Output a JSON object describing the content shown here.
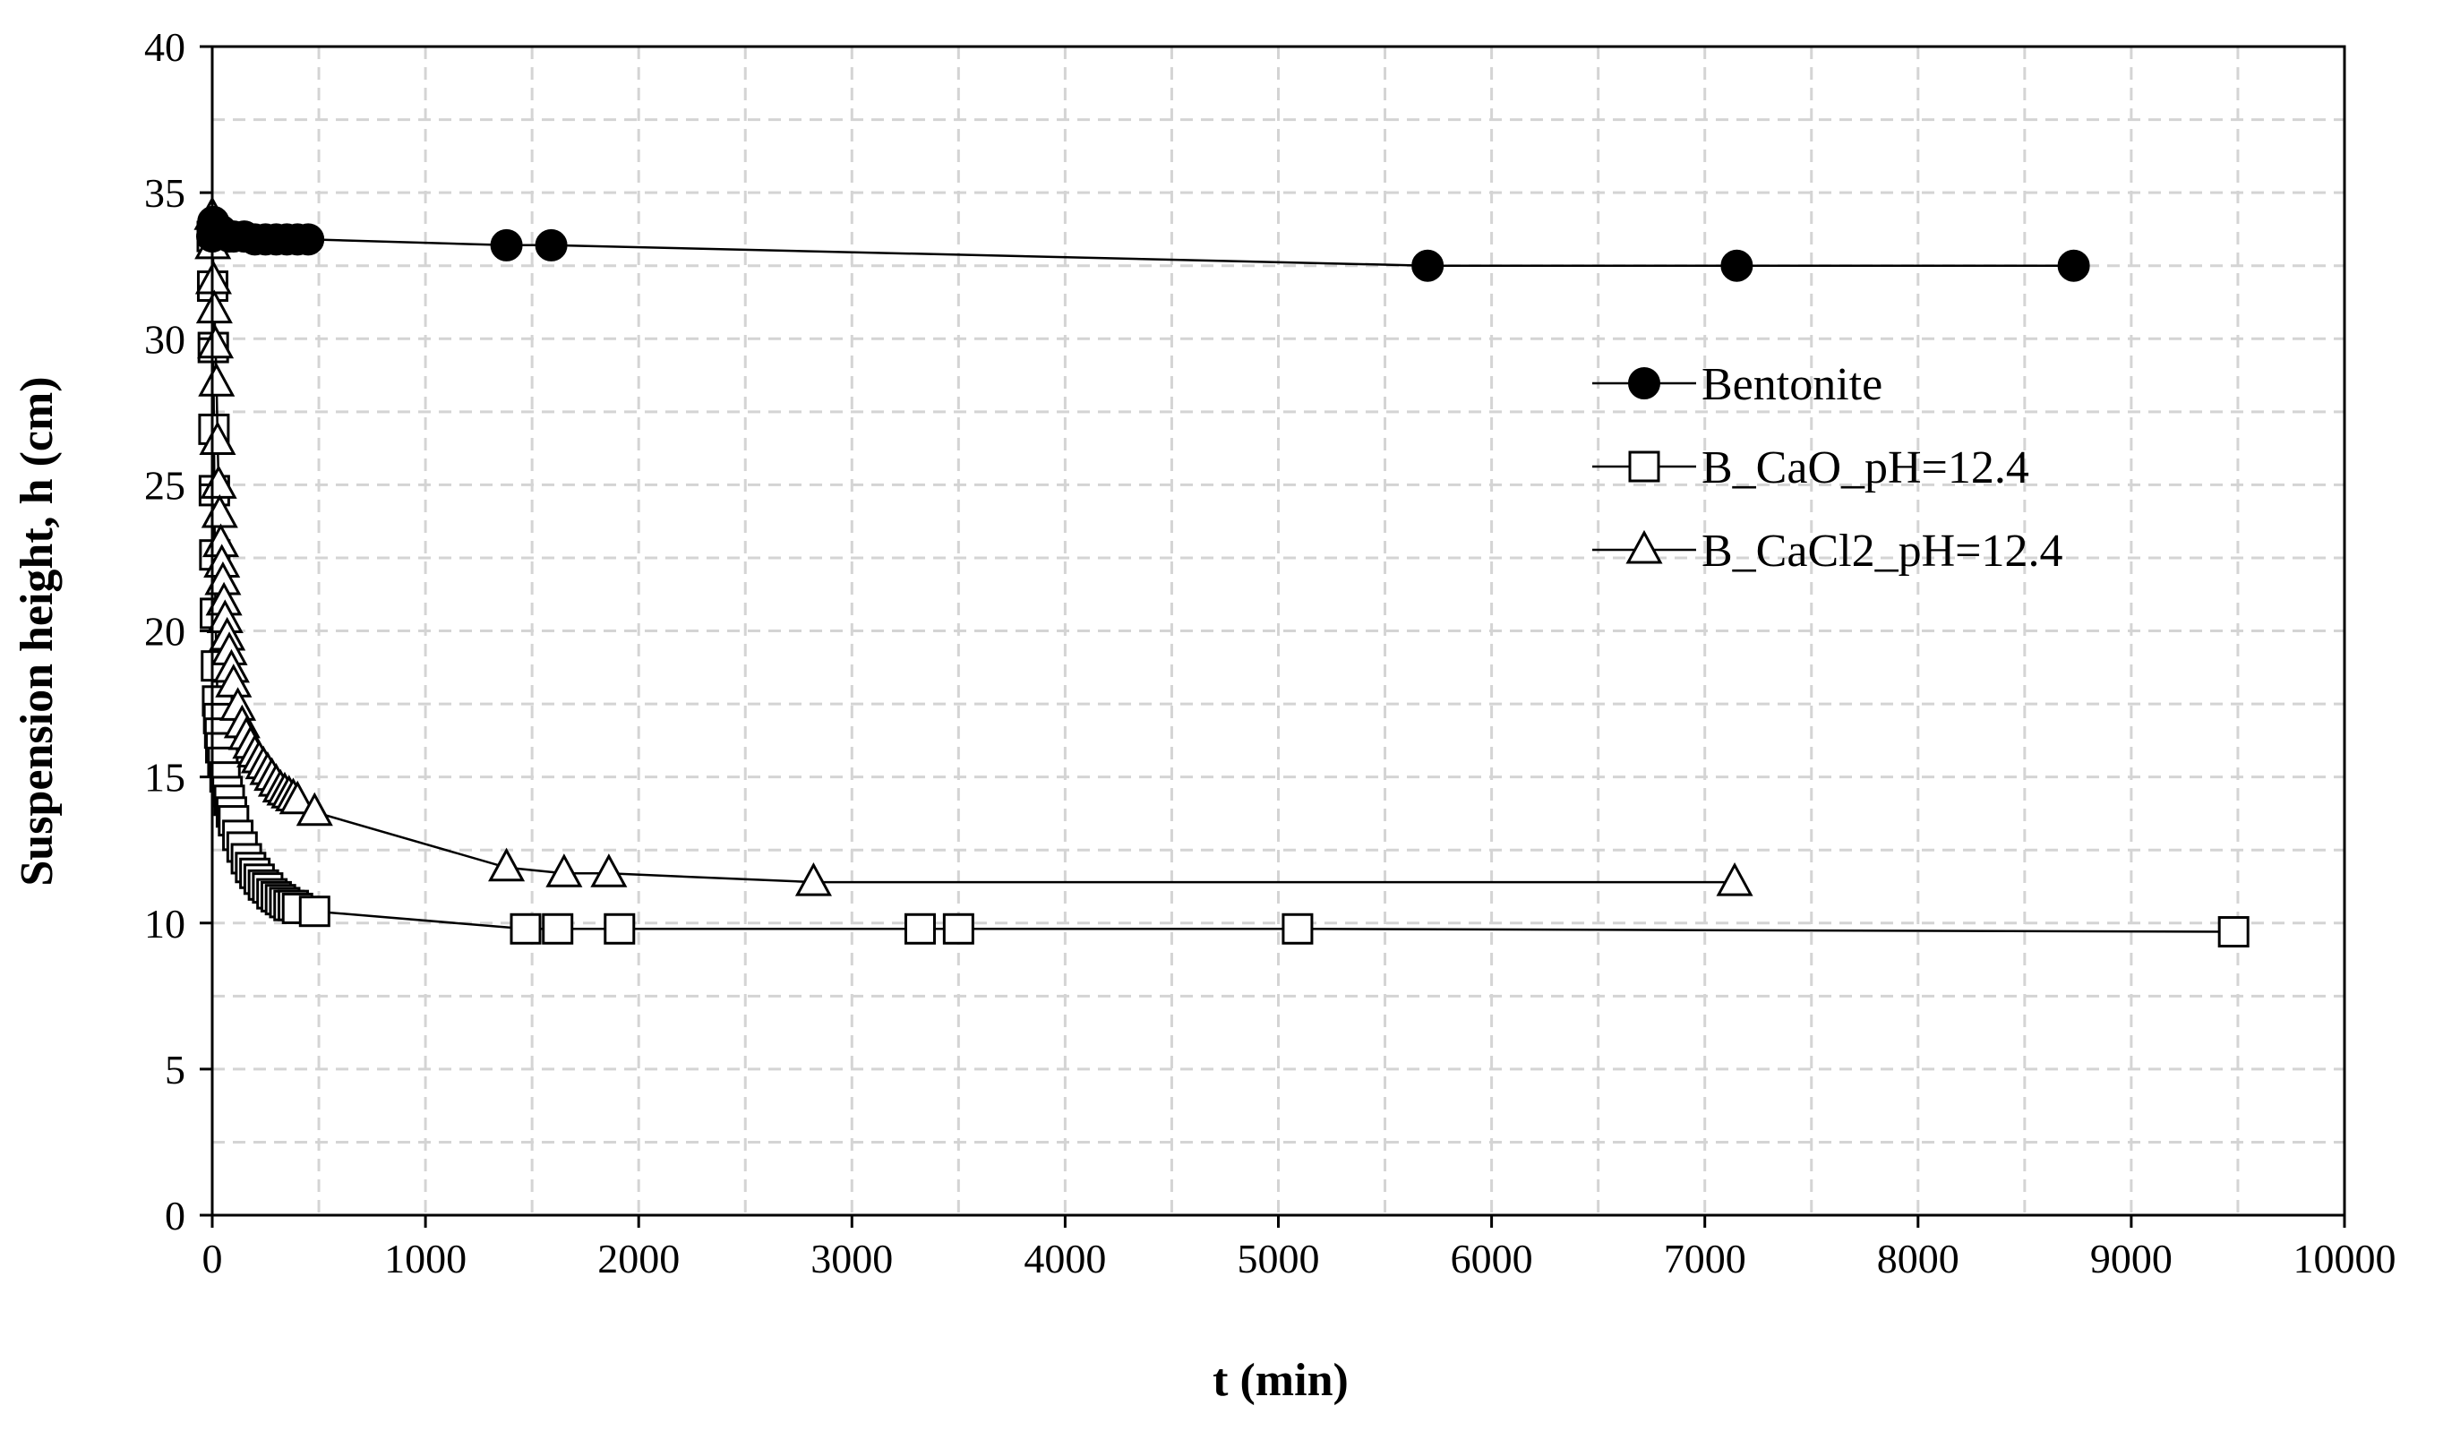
{
  "chart_data": {
    "type": "line",
    "title": "",
    "xlabel": "t (min)",
    "ylabel": "Suspension height, h  (cm)",
    "xlim": [
      0,
      10000
    ],
    "ylim": [
      0,
      40
    ],
    "xticks": [
      0,
      1000,
      2000,
      3000,
      4000,
      5000,
      6000,
      7000,
      8000,
      9000,
      10000
    ],
    "yticks": [
      0,
      5,
      10,
      15,
      20,
      25,
      30,
      35,
      40
    ],
    "x_tick_labels": [
      "0",
      "1000",
      "2000",
      "3000",
      "4000",
      "5000",
      "6000",
      "7000",
      "8000",
      "9000",
      "10000"
    ],
    "y_tick_labels": [
      "0",
      "5",
      "10",
      "15",
      "20",
      "25",
      "30",
      "35",
      "40"
    ],
    "grid": true,
    "legend_position": "center-right",
    "series": [
      {
        "name": "Bentonite",
        "marker": "filled-circle",
        "x": [
          0,
          5,
          10,
          20,
          40,
          80,
          100,
          150,
          200,
          250,
          300,
          350,
          400,
          450,
          1380,
          1590,
          5700,
          7150,
          8730
        ],
        "y": [
          33.5,
          34.0,
          33.9,
          33.8,
          33.7,
          33.5,
          33.5,
          33.5,
          33.4,
          33.4,
          33.4,
          33.4,
          33.4,
          33.4,
          33.2,
          33.2,
          32.5,
          32.5,
          32.5
        ]
      },
      {
        "name": "B_CaO_pH=12.4",
        "marker": "open-square",
        "x": [
          0,
          2,
          5,
          8,
          10,
          12,
          15,
          20,
          25,
          30,
          35,
          40,
          50,
          60,
          70,
          80,
          90,
          100,
          120,
          140,
          160,
          180,
          200,
          220,
          240,
          260,
          280,
          300,
          320,
          340,
          360,
          380,
          400,
          480,
          1470,
          1620,
          1910,
          3320,
          3500,
          5090,
          9480
        ],
        "y": [
          33.5,
          31.8,
          29.7,
          26.9,
          24.8,
          22.6,
          20.6,
          18.8,
          17.6,
          17.0,
          16.5,
          16.0,
          15.5,
          15.0,
          14.5,
          14.2,
          13.8,
          13.5,
          13.0,
          12.6,
          12.2,
          11.9,
          11.7,
          11.5,
          11.3,
          11.2,
          11.0,
          10.9,
          10.8,
          10.7,
          10.6,
          10.6,
          10.5,
          10.4,
          9.8,
          9.8,
          9.8,
          9.8,
          9.8,
          9.8,
          9.7
        ]
      },
      {
        "name": "B_CaCl2_pH=12.4",
        "marker": "open-triangle",
        "x": [
          0,
          3,
          6,
          10,
          15,
          20,
          25,
          30,
          35,
          40,
          45,
          50,
          55,
          60,
          70,
          80,
          90,
          100,
          120,
          140,
          160,
          180,
          200,
          220,
          240,
          260,
          280,
          300,
          320,
          340,
          360,
          380,
          400,
          480,
          1380,
          1650,
          1860,
          2820,
          7140
        ],
        "y": [
          34.2,
          33.2,
          32.0,
          31.0,
          29.8,
          28.5,
          26.5,
          25.0,
          24.0,
          23.0,
          22.3,
          21.7,
          21.0,
          20.4,
          19.8,
          19.3,
          18.7,
          18.2,
          17.4,
          16.8,
          16.4,
          16.1,
          15.8,
          15.6,
          15.4,
          15.2,
          15.0,
          14.8,
          14.6,
          14.5,
          14.4,
          14.3,
          14.2,
          13.8,
          11.9,
          11.7,
          11.7,
          11.4,
          11.4
        ]
      }
    ]
  }
}
